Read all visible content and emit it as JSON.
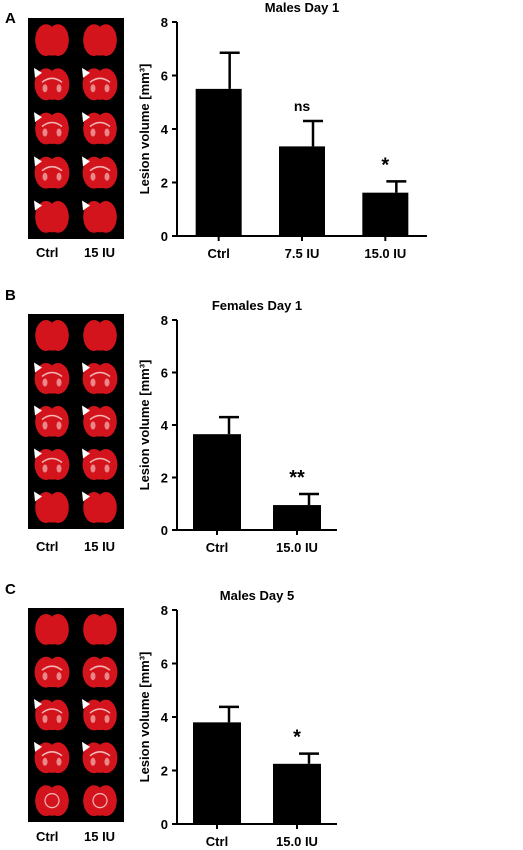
{
  "panels": [
    {
      "letter": "A",
      "photo_labels": [
        "Ctrl",
        "15 IU"
      ],
      "photo_arrows": [
        false,
        true,
        true,
        true,
        true
      ],
      "chart_index": 0
    },
    {
      "letter": "B",
      "photo_labels": [
        "Ctrl",
        "15 IU"
      ],
      "photo_arrows": [
        false,
        true,
        true,
        true,
        true
      ],
      "chart_index": 1
    },
    {
      "letter": "C",
      "photo_labels": [
        "Ctrl",
        "15 IU"
      ],
      "photo_arrows": [
        false,
        false,
        true,
        true,
        false
      ],
      "chart_index": 2
    }
  ],
  "colors": {
    "bar": "#000000",
    "tissue": "#d4141c",
    "tissue_light": "#f2b8b8",
    "photo_bg": "#000000"
  },
  "chart_data": [
    {
      "type": "bar",
      "title": "Males Day 1",
      "ylabel": "Lesion volume [mm³]",
      "xlabel": "",
      "categories": [
        "Ctrl",
        "7.5 IU",
        "15.0 IU"
      ],
      "values": [
        5.5,
        3.35,
        1.62
      ],
      "errors": [
        1.35,
        0.95,
        0.42
      ],
      "significance": [
        "",
        "ns",
        "*"
      ],
      "ylim": [
        0,
        8
      ],
      "yticks": [
        0,
        2,
        4,
        6,
        8
      ]
    },
    {
      "type": "bar",
      "title": "Females Day 1",
      "ylabel": "Lesion volume [mm³]",
      "xlabel": "",
      "categories": [
        "Ctrl",
        "15.0 IU"
      ],
      "values": [
        3.65,
        0.95
      ],
      "errors": [
        0.65,
        0.42
      ],
      "significance": [
        "",
        "**"
      ],
      "ylim": [
        0,
        8
      ],
      "yticks": [
        0,
        2,
        4,
        6,
        8
      ]
    },
    {
      "type": "bar",
      "title": "Males Day 5",
      "ylabel": "Lesion volume [mm³]",
      "xlabel": "",
      "categories": [
        "Ctrl",
        "15.0 IU"
      ],
      "values": [
        3.8,
        2.25
      ],
      "errors": [
        0.58,
        0.38
      ],
      "significance": [
        "",
        "*"
      ],
      "ylim": [
        0,
        8
      ],
      "yticks": [
        0,
        2,
        4,
        6,
        8
      ]
    }
  ]
}
